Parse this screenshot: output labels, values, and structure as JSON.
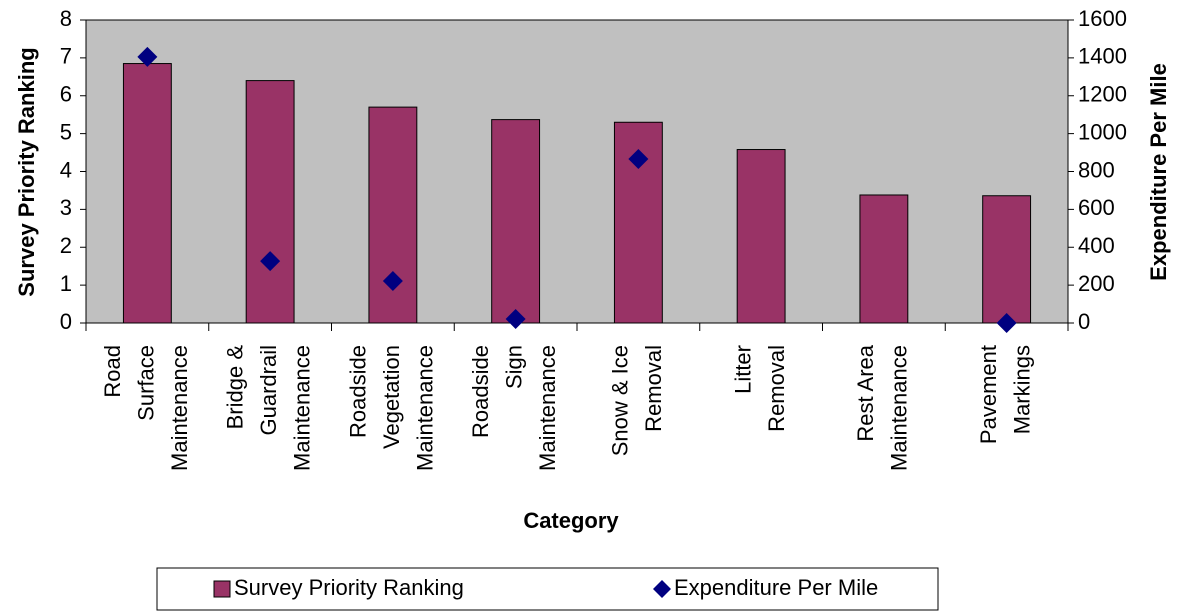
{
  "chart_data": {
    "type": "bar",
    "x_label": "Category",
    "y_label": "Survey Priority Ranking",
    "y2_label": "Expenditure Per Mile",
    "categories": [
      "Road Surface Maintenance",
      "Bridge & Guardrail Maintenance",
      "Roadside Vegetation Maintenance",
      "Roadside Sign Maintenance",
      "Snow & Ice Removal",
      "Litter Removal",
      "Rest Area Maintenance",
      "Pavement Markings"
    ],
    "series": [
      {
        "name": "Survey Priority Ranking",
        "type": "bar",
        "color": "#993366",
        "values": [
          6.85,
          6.4,
          5.7,
          5.37,
          5.3,
          4.58,
          3.38,
          3.36
        ]
      },
      {
        "name": "Expenditure Per Mile",
        "type": "scatter",
        "axis": "y2",
        "color": "#000080",
        "values": [
          1405,
          327,
          222,
          21,
          866,
          null,
          null,
          0
        ]
      }
    ],
    "ylim": [
      0,
      8
    ],
    "yticks": [
      0,
      1,
      2,
      3,
      4,
      5,
      6,
      7,
      8
    ],
    "y2lim": [
      0,
      1600
    ],
    "y2ticks": [
      0,
      200,
      400,
      600,
      800,
      1000,
      1200,
      1400,
      1600
    ],
    "plot_background": "#c0c0c0",
    "legend": "bottom"
  }
}
